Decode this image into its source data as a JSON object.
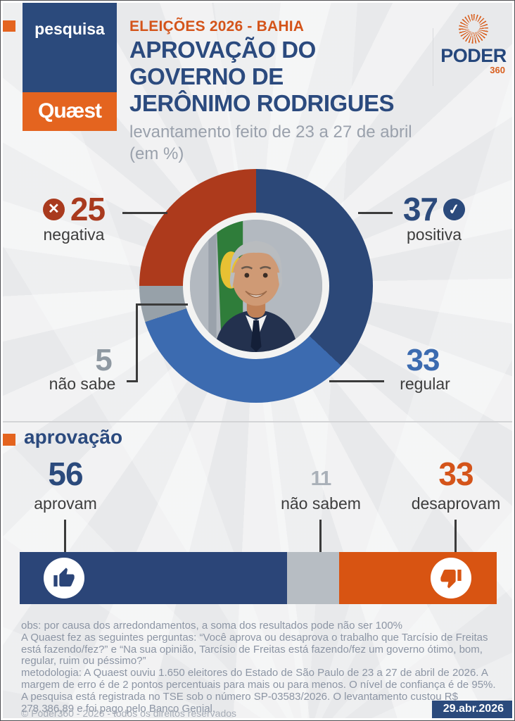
{
  "colors": {
    "navy": "#2b4a7c",
    "medium_blue": "#3c6bb0",
    "red": "#a93a1e",
    "orange": "#e4641f",
    "bar_orange": "#d85412",
    "bar_gray": "#b7bdc3",
    "donut_gray": "#97a1a9",
    "background": "#e8e9eb"
  },
  "header": {
    "tag": "pesquisa",
    "brand": "Quæst",
    "kicker": "ELEIÇÕES 2026 - BAHIA",
    "title": "APROVAÇÃO DO GOVERNO DE JERÔNIMO RODRIGUES",
    "subtitle": "levantamento feito de 23 a 27 de abril",
    "subtitle_unit": "(em %)",
    "logo_word": "PODER",
    "logo_sub": "360"
  },
  "donut_labels": {
    "negativa": {
      "value": "25",
      "label": "negativa",
      "icon": "x-circle"
    },
    "positiva": {
      "value": "37",
      "label": "positiva",
      "icon": "check-circle"
    },
    "nao_sabe": {
      "value": "5",
      "label": "não sabe"
    },
    "regular": {
      "value": "33",
      "label": "regular"
    }
  },
  "approval": {
    "heading": "aprovação",
    "items": [
      {
        "value": "56",
        "label": "aprovam"
      },
      {
        "value": "11",
        "label": "não sabem"
      },
      {
        "value": "33",
        "label": "desaprovam"
      }
    ]
  },
  "footnotes": {
    "obs": "obs: por causa dos arredondamentos, a soma dos resultados pode não ser 100%",
    "questions": "A Quaest fez as seguintes perguntas: “Você aprova ou desaprova o trabalho que Tarcísio de Freitas está fazendo/fez?” e “Na sua opinião, Tarcísio de Freitas está fazendo/fez um governo ótimo, bom, regular, ruim ou péssimo?”",
    "methodology": "metodologia: A Quaest ouviu 1.650 eleitores do Estado de São Paulo de 23 a 27 de abril de 2026. A margem de erro é de 2 pontos percentuais para mais ou para menos. O nível de confiança é de 95%. A pesquisa está registrada no TSE sob o número SP-03583/2026. O levantamento custou R$ 278.386,89 e foi pago pelo Banco Genial.",
    "copyright": "© Poder360 - 2026 - todos os direitos reservados",
    "date": "29.abr.2026"
  },
  "chart_data": [
    {
      "type": "pie",
      "title": "Aprovação do governo de Jerônimo Rodrigues (em %)",
      "total": 100,
      "start_angle_deg": 0,
      "direction": "clockwise",
      "segments": [
        {
          "name": "positiva",
          "value": 37,
          "color": "#2c4878"
        },
        {
          "name": "regular",
          "value": 33,
          "color": "#3c6bb0"
        },
        {
          "name": "não sabe",
          "value": 5,
          "color": "#97a1a9"
        },
        {
          "name": "negativa",
          "value": 25,
          "color": "#ad3a1c"
        }
      ]
    },
    {
      "type": "bar",
      "title": "aprovação (em %)",
      "orientation": "horizontal-stacked",
      "segments": [
        {
          "name": "aprovam",
          "value": 56,
          "color": "#2b4578"
        },
        {
          "name": "não sabem",
          "value": 11,
          "color": "#b7bdc3"
        },
        {
          "name": "desaprovam",
          "value": 33,
          "color": "#d85412"
        }
      ]
    }
  ]
}
